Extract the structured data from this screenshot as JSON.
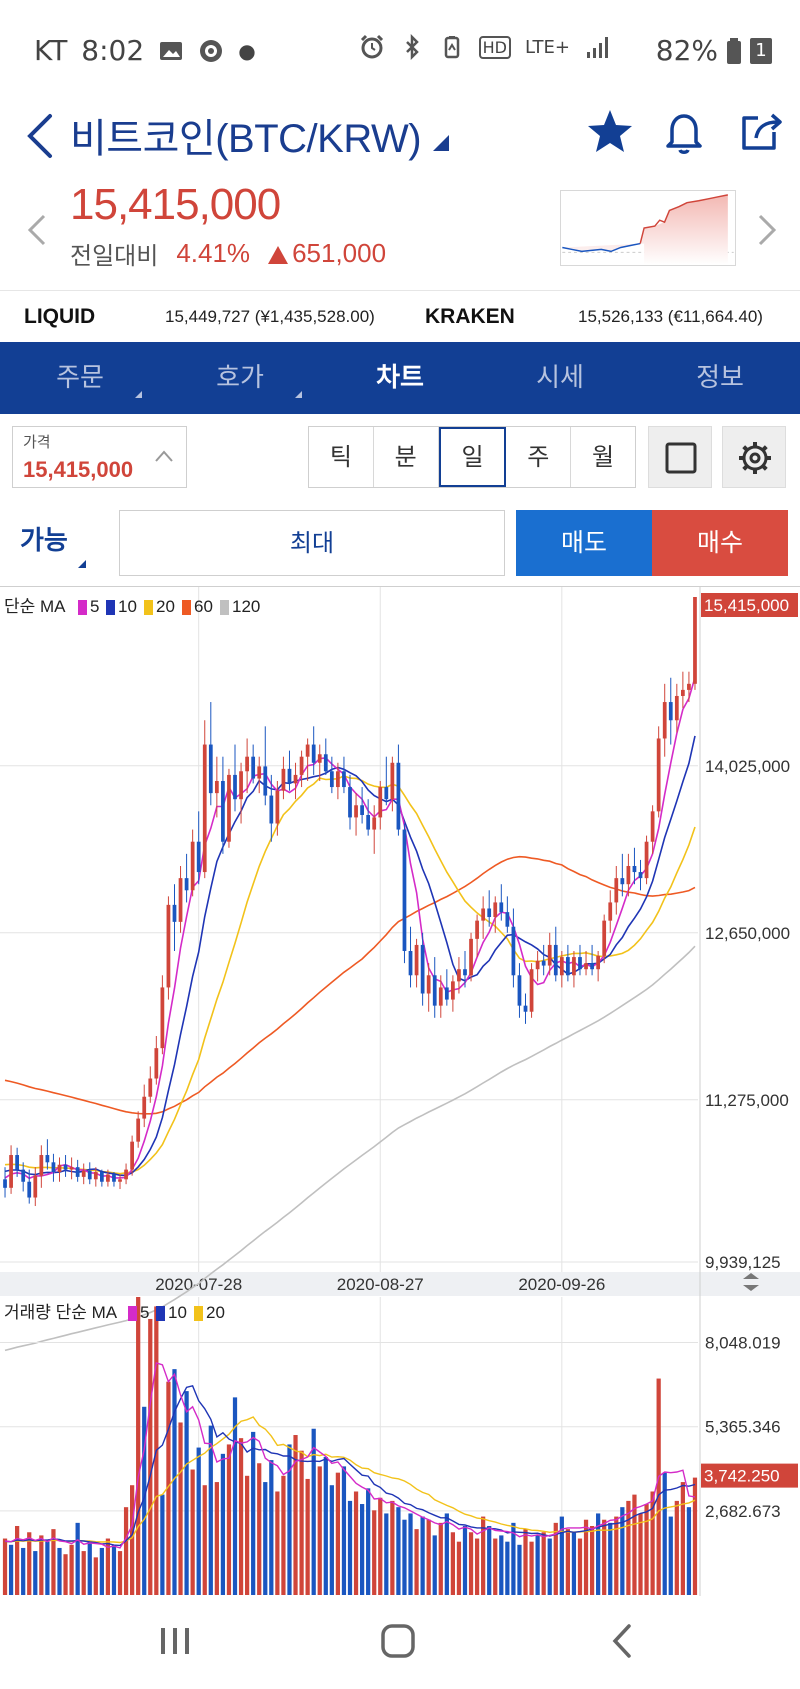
{
  "status_bar": {
    "carrier": "KT",
    "time": "8:02",
    "network": "LTE+",
    "battery": "82%",
    "hd": "HD",
    "sim": "1"
  },
  "header": {
    "title": "비트코인(BTC/KRW)"
  },
  "price": {
    "current": "15,415,000",
    "change_label": "전일대비",
    "change_pct": "4.41%",
    "change_amount": "651,000"
  },
  "exchanges": [
    {
      "name": "LIQUID",
      "value": "15,449,727 (¥1,435,528.00)"
    },
    {
      "name": "KRAKEN",
      "value": "15,526,133 (€11,664.40)"
    }
  ],
  "tabs": [
    {
      "label": "주문",
      "active": false
    },
    {
      "label": "호가",
      "active": false
    },
    {
      "label": "차트",
      "active": true
    },
    {
      "label": "시세",
      "active": false
    },
    {
      "label": "정보",
      "active": false
    }
  ],
  "toolbar": {
    "price_label": "가격",
    "price_value": "15,415,000",
    "periods": [
      "틱",
      "분",
      "일",
      "주",
      "월"
    ],
    "selected_period": "일"
  },
  "order": {
    "available_label": "가능",
    "max_label": "최대",
    "sell_label": "매도",
    "buy_label": "매수"
  },
  "colors": {
    "up": "#d0453a",
    "down": "#1a56c0",
    "brand": "#123f94",
    "ma5": "#d42bc8",
    "ma10": "#1f35b5",
    "ma20": "#f2c21a",
    "ma60": "#ee5a24",
    "ma120": "#c0c0c0"
  },
  "chart_data": {
    "type": "candlestick",
    "price_legend": {
      "prefix": "단순 MA",
      "periods": [
        "5",
        "10",
        "20",
        "60",
        "120"
      ]
    },
    "volume_legend": {
      "prefix": "거래량 단순 MA",
      "periods": [
        "5",
        "10",
        "20"
      ]
    },
    "price_ticks": [
      "14,025,000",
      "12,650,000",
      "11,275,000",
      "9,939,125"
    ],
    "price_tick_values": [
      14025000,
      12650000,
      11275000,
      9939125
    ],
    "current_price_label": "15,415,000",
    "current_price_value": 15415000,
    "volume_ticks": [
      "8,048.019",
      "5,365.346",
      "2,682.673"
    ],
    "volume_tick_values": [
      8048.019,
      5365.346,
      2682.673
    ],
    "current_volume_label": "3,742.250",
    "current_volume_value": 3742.25,
    "date_ticks": [
      "2020-07-28",
      "2020-08-27",
      "2020-09-26"
    ],
    "price_ylim": [
      9939125,
      15415000
    ],
    "volume_ylim": [
      0,
      9500
    ],
    "ohlc": [
      [
        10620000,
        10720000,
        10470000,
        10550000
      ],
      [
        10550000,
        10900000,
        10500000,
        10820000
      ],
      [
        10820000,
        10880000,
        10640000,
        10700000
      ],
      [
        10700000,
        10760000,
        10520000,
        10600000
      ],
      [
        10600000,
        10700000,
        10420000,
        10470000
      ],
      [
        10470000,
        10720000,
        10400000,
        10650000
      ],
      [
        10650000,
        10900000,
        10550000,
        10820000
      ],
      [
        10820000,
        10950000,
        10700000,
        10760000
      ],
      [
        10760000,
        10830000,
        10600000,
        10680000
      ],
      [
        10680000,
        10800000,
        10600000,
        10740000
      ],
      [
        10740000,
        10820000,
        10640000,
        10700000
      ],
      [
        10700000,
        10800000,
        10620000,
        10720000
      ],
      [
        10720000,
        10780000,
        10600000,
        10640000
      ],
      [
        10640000,
        10750000,
        10580000,
        10690000
      ],
      [
        10690000,
        10760000,
        10580000,
        10620000
      ],
      [
        10620000,
        10720000,
        10560000,
        10680000
      ],
      [
        10680000,
        10700000,
        10560000,
        10600000
      ],
      [
        10600000,
        10700000,
        10560000,
        10660000
      ],
      [
        10660000,
        10680000,
        10560000,
        10600000
      ],
      [
        10600000,
        10660000,
        10540000,
        10620000
      ],
      [
        10620000,
        10750000,
        10580000,
        10700000
      ],
      [
        10700000,
        10980000,
        10650000,
        10930000
      ],
      [
        10930000,
        11180000,
        10880000,
        11120000
      ],
      [
        11120000,
        11400000,
        11050000,
        11300000
      ],
      [
        11300000,
        11550000,
        11250000,
        11450000
      ],
      [
        11450000,
        11800000,
        11400000,
        11700000
      ],
      [
        11700000,
        12300000,
        11650000,
        12200000
      ],
      [
        12200000,
        12950000,
        12100000,
        12880000
      ],
      [
        12880000,
        13050000,
        12500000,
        12740000
      ],
      [
        12740000,
        13200000,
        12650000,
        13100000
      ],
      [
        13100000,
        13300000,
        12900000,
        13000000
      ],
      [
        13000000,
        13500000,
        12950000,
        13400000
      ],
      [
        13400000,
        13650000,
        13050000,
        13150000
      ],
      [
        13150000,
        14400000,
        13100000,
        14200000
      ],
      [
        14200000,
        14550000,
        13700000,
        13800000
      ],
      [
        13800000,
        14100000,
        13600000,
        13900000
      ],
      [
        13900000,
        14100000,
        13300000,
        13400000
      ],
      [
        13400000,
        14000000,
        13350000,
        13950000
      ],
      [
        13950000,
        14200000,
        13650000,
        13750000
      ],
      [
        13750000,
        14050000,
        13550000,
        13980000
      ],
      [
        13980000,
        14250000,
        13800000,
        14100000
      ],
      [
        14100000,
        14200000,
        13880000,
        13920000
      ],
      [
        13920000,
        14100000,
        13800000,
        14020000
      ],
      [
        14020000,
        14350000,
        13700000,
        13780000
      ],
      [
        13780000,
        13950000,
        13400000,
        13550000
      ],
      [
        13550000,
        13900000,
        13450000,
        13820000
      ],
      [
        13820000,
        14100000,
        13750000,
        14000000
      ],
      [
        14000000,
        14150000,
        13820000,
        13880000
      ],
      [
        13880000,
        14050000,
        13750000,
        13950000
      ],
      [
        13950000,
        14150000,
        13850000,
        14100000
      ],
      [
        14100000,
        14250000,
        13900000,
        14200000
      ],
      [
        14200000,
        14350000,
        13950000,
        14050000
      ],
      [
        14050000,
        14200000,
        13900000,
        14120000
      ],
      [
        14120000,
        14250000,
        13950000,
        13980000
      ],
      [
        13980000,
        14100000,
        13800000,
        13850000
      ],
      [
        13850000,
        14050000,
        13750000,
        13980000
      ],
      [
        13980000,
        14100000,
        13800000,
        13850000
      ],
      [
        13850000,
        13950000,
        13500000,
        13600000
      ],
      [
        13600000,
        13800000,
        13450000,
        13700000
      ],
      [
        13700000,
        13850000,
        13550000,
        13620000
      ],
      [
        13620000,
        13750000,
        13450000,
        13500000
      ],
      [
        13500000,
        13700000,
        13300000,
        13600000
      ],
      [
        13600000,
        13900000,
        13500000,
        13850000
      ],
      [
        13850000,
        14100000,
        13700000,
        13750000
      ],
      [
        13750000,
        14100000,
        13650000,
        14050000
      ],
      [
        14050000,
        14200000,
        13450000,
        13500000
      ],
      [
        13500000,
        13550000,
        12400000,
        12500000
      ],
      [
        12500000,
        12700000,
        12200000,
        12300000
      ],
      [
        12300000,
        12600000,
        12200000,
        12550000
      ],
      [
        12550000,
        12650000,
        12050000,
        12150000
      ],
      [
        12150000,
        12400000,
        12000000,
        12300000
      ],
      [
        12300000,
        12450000,
        11950000,
        12050000
      ],
      [
        12050000,
        12300000,
        11950000,
        12200000
      ],
      [
        12200000,
        12350000,
        12050000,
        12100000
      ],
      [
        12100000,
        12300000,
        12000000,
        12250000
      ],
      [
        12250000,
        12450000,
        12150000,
        12350000
      ],
      [
        12350000,
        12500000,
        12200000,
        12300000
      ],
      [
        12300000,
        12650000,
        12250000,
        12600000
      ],
      [
        12600000,
        12800000,
        12450000,
        12750000
      ],
      [
        12750000,
        12950000,
        12600000,
        12850000
      ],
      [
        12850000,
        13000000,
        12700000,
        12780000
      ],
      [
        12780000,
        12950000,
        12650000,
        12900000
      ],
      [
        12900000,
        13050000,
        12750000,
        12820000
      ],
      [
        12820000,
        12950000,
        12650000,
        12700000
      ],
      [
        12700000,
        12850000,
        12200000,
        12300000
      ],
      [
        12300000,
        12400000,
        11950000,
        12050000
      ],
      [
        12050000,
        12150000,
        11900000,
        12000000
      ],
      [
        12000000,
        12400000,
        11950000,
        12350000
      ],
      [
        12350000,
        12500000,
        12250000,
        12420000
      ],
      [
        12420000,
        12550000,
        12300000,
        12380000
      ],
      [
        12380000,
        12650000,
        12300000,
        12550000
      ],
      [
        12550000,
        12700000,
        12250000,
        12300000
      ],
      [
        12300000,
        12500000,
        12200000,
        12450000
      ],
      [
        12450000,
        12550000,
        12250000,
        12300000
      ],
      [
        12300000,
        12500000,
        12200000,
        12450000
      ],
      [
        12450000,
        12550000,
        12300000,
        12350000
      ],
      [
        12350000,
        12500000,
        12300000,
        12400000
      ],
      [
        12400000,
        12550000,
        12300000,
        12350000
      ],
      [
        12350000,
        12500000,
        12250000,
        12460000
      ],
      [
        12460000,
        12800000,
        12400000,
        12750000
      ],
      [
        12750000,
        13000000,
        12650000,
        12900000
      ],
      [
        12900000,
        13200000,
        12800000,
        13100000
      ],
      [
        13100000,
        13300000,
        12950000,
        13050000
      ],
      [
        13050000,
        13300000,
        12950000,
        13200000
      ],
      [
        13200000,
        13350000,
        13050000,
        13150000
      ],
      [
        13150000,
        13250000,
        13000000,
        13100000
      ],
      [
        13100000,
        13450000,
        13050000,
        13400000
      ],
      [
        13400000,
        13700000,
        13300000,
        13650000
      ],
      [
        13650000,
        14350000,
        13600000,
        14250000
      ],
      [
        14250000,
        14700000,
        14100000,
        14550000
      ],
      [
        14550000,
        14750000,
        14200000,
        14400000
      ],
      [
        14400000,
        14700000,
        14300000,
        14600000
      ],
      [
        14600000,
        14800000,
        14500000,
        14650000
      ],
      [
        14650000,
        14800000,
        14550000,
        14700000
      ],
      [
        14700000,
        15415000,
        14650000,
        15415000
      ]
    ],
    "volume": [
      1800,
      1600,
      2200,
      1500,
      2000,
      1400,
      1900,
      1700,
      2100,
      1500,
      1300,
      1600,
      2300,
      1400,
      1700,
      1200,
      1500,
      1800,
      1600,
      1400,
      2800,
      3500,
      9500,
      6000,
      8800,
      9200,
      3200,
      6800,
      7200,
      5500,
      6500,
      4000,
      4700,
      3500,
      5400,
      3600,
      4500,
      4800,
      6300,
      5000,
      3800,
      5200,
      4200,
      3600,
      4300,
      3300,
      3800,
      4800,
      5100,
      4600,
      3700,
      5300,
      4100,
      4400,
      3500,
      3900,
      4100,
      3000,
      3300,
      2900,
      3400,
      2700,
      3100,
      2600,
      3000,
      2800,
      2400,
      2600,
      2100,
      2500,
      2400,
      1900,
      2300,
      2600,
      2000,
      1700,
      2200,
      2000,
      1800,
      2500,
      2200,
      1800,
      1900,
      1700,
      2300,
      1600,
      2100,
      1700,
      1900,
      2000,
      1800,
      2300,
      2500,
      2100,
      2000,
      1800,
      2400,
      2200,
      2600,
      2400,
      2300,
      2500,
      2800,
      3000,
      3200,
      2600,
      2900,
      3300,
      6900,
      3900,
      2500,
      3000,
      3600,
      2800,
      3742.25
    ],
    "volume_up": [
      true,
      false,
      true,
      false,
      true,
      false,
      true,
      false,
      true,
      false,
      true,
      true,
      false,
      true,
      false,
      true,
      false,
      true,
      false,
      true,
      true,
      true,
      true,
      false,
      true,
      true,
      false,
      true,
      false,
      true,
      false,
      true,
      false,
      true,
      false,
      true,
      false,
      true,
      false,
      true,
      true,
      false,
      true,
      false,
      false,
      true,
      true,
      false,
      true,
      true,
      true,
      false,
      true,
      false,
      false,
      true,
      false,
      false,
      true,
      false,
      false,
      true,
      true,
      false,
      true,
      false,
      false,
      false,
      true,
      false,
      true,
      false,
      true,
      false,
      true,
      true,
      false,
      true,
      true,
      true,
      false,
      true,
      false,
      false,
      false,
      false,
      true,
      true,
      false,
      true,
      false,
      true,
      false,
      true,
      false,
      true,
      true,
      true,
      false,
      true,
      false,
      true,
      false,
      true,
      true,
      true,
      true,
      true,
      true,
      false,
      false,
      true,
      true,
      false,
      true
    ]
  }
}
